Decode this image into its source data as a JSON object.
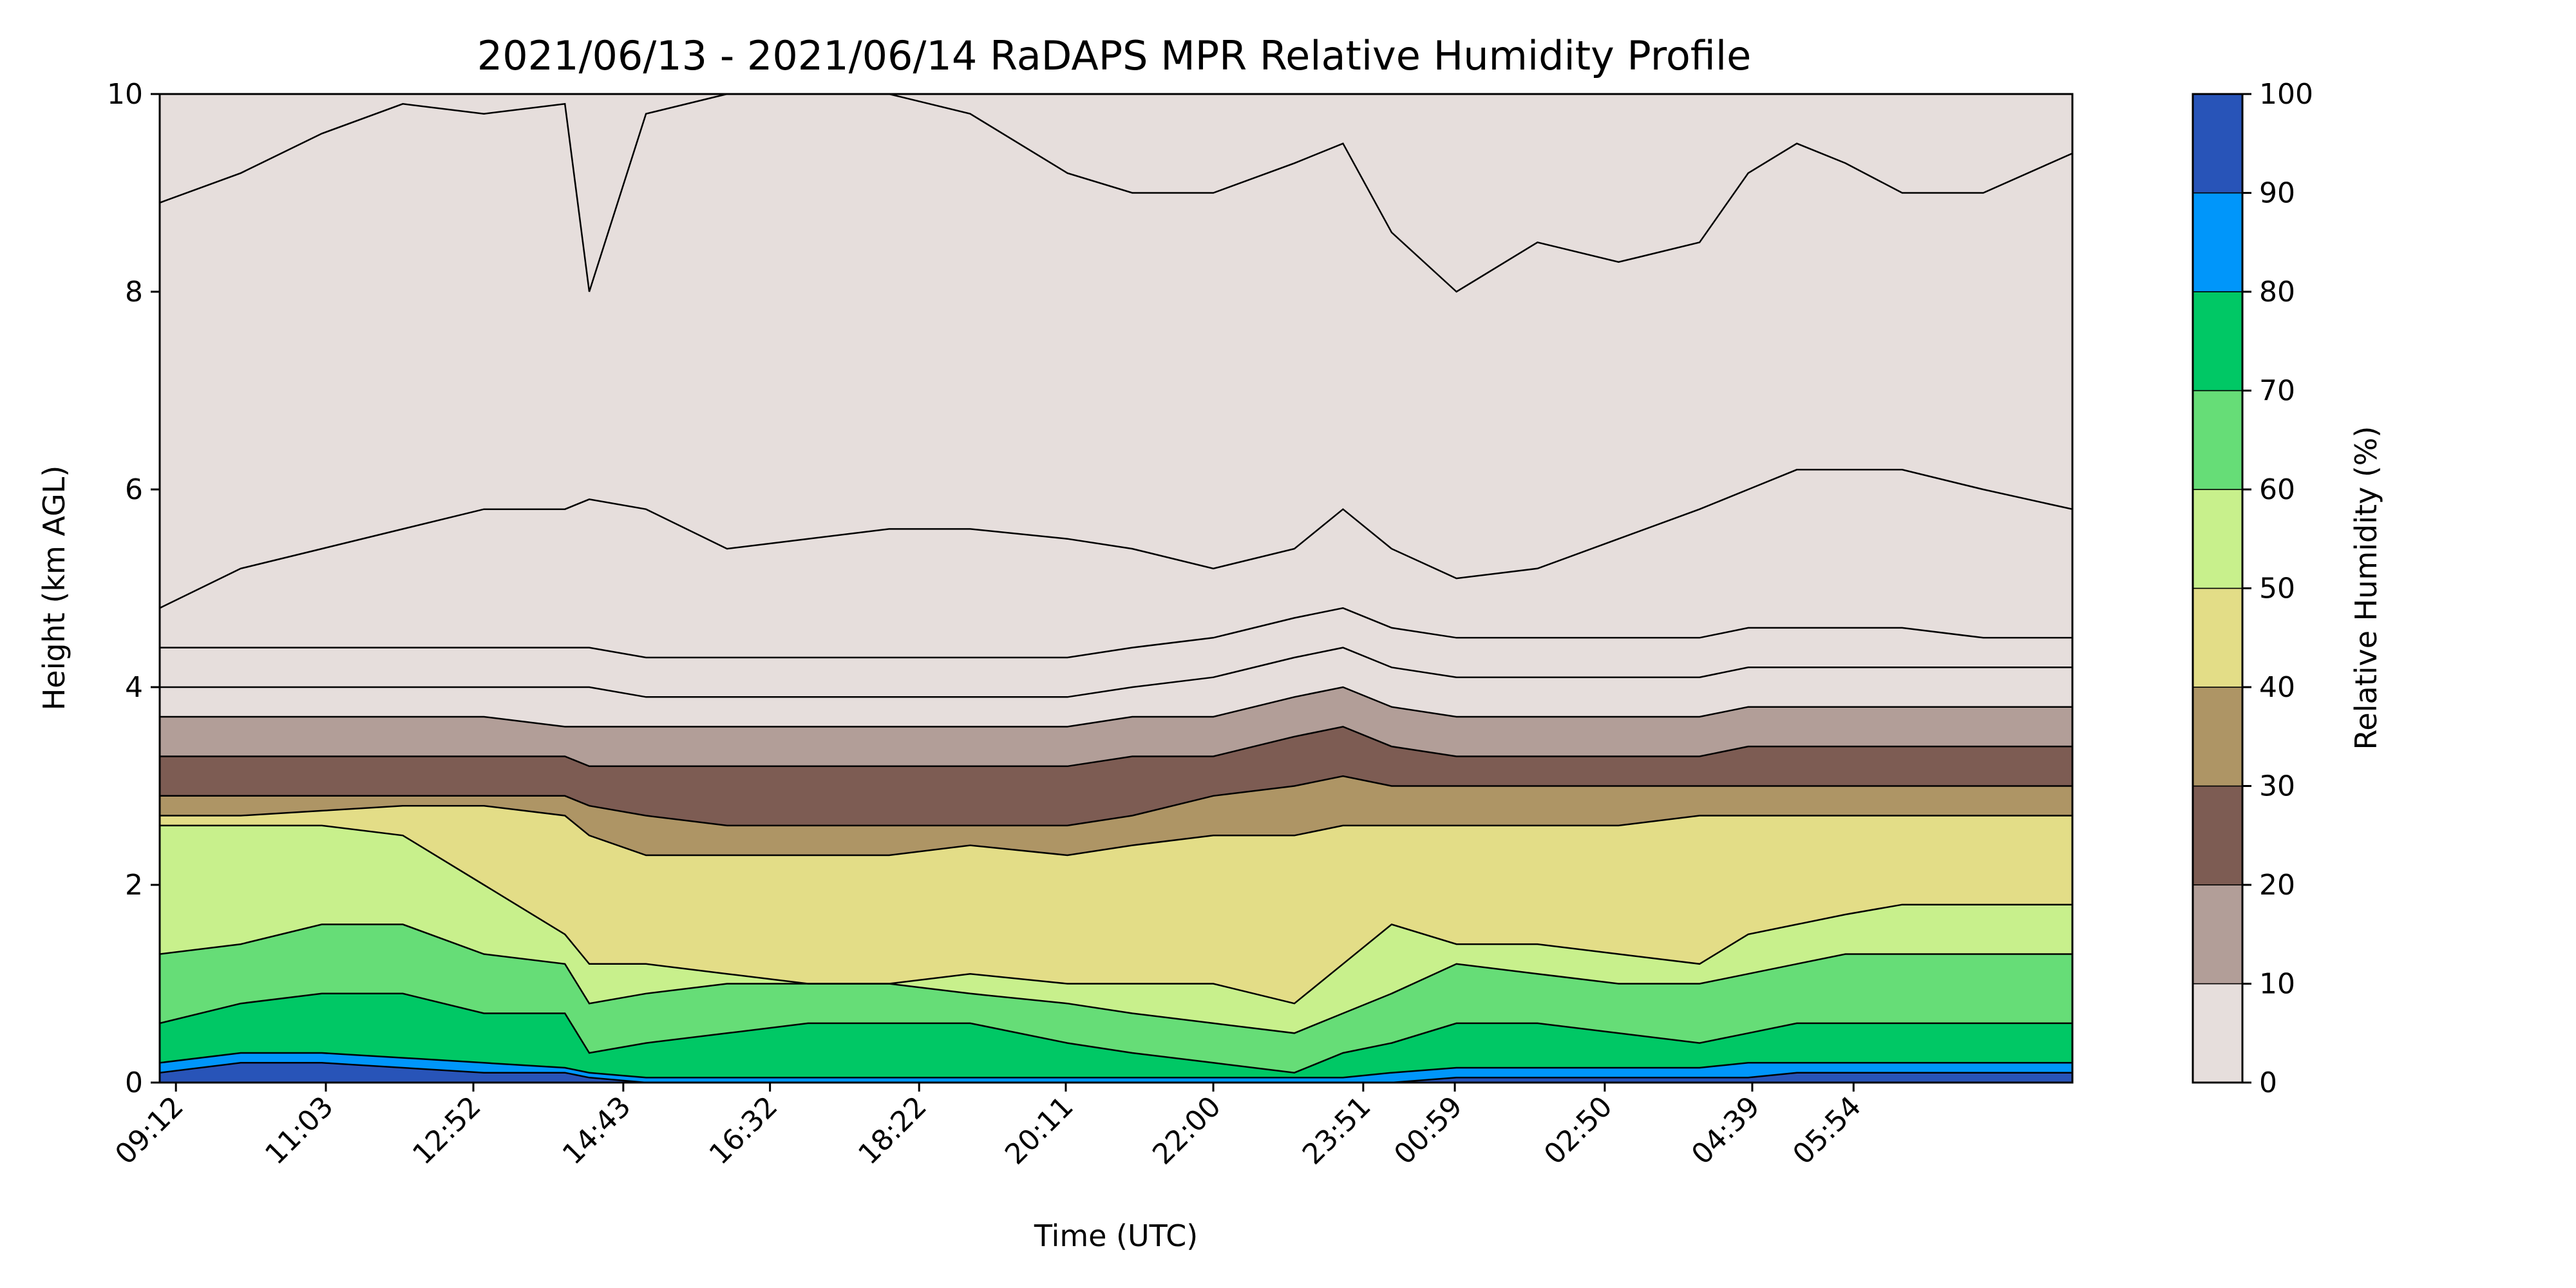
{
  "chart_data": {
    "type": "heatmap",
    "subtype": "filled-contour",
    "title": "2021/06/13 - 2021/06/14 RaDAPS MPR Relative Humidity Profile",
    "xlabel": "Time (UTC)",
    "ylabel": "Height (km AGL)",
    "ylim": [
      0,
      10
    ],
    "yticks": [
      "0",
      "2",
      "4",
      "6",
      "8",
      "10"
    ],
    "xlim_hours_since_0900": [
      0,
      23.6
    ],
    "xticks": [
      "09:12",
      "11:03",
      "12:52",
      "14:43",
      "16:32",
      "18:22",
      "20:11",
      "22:00",
      "23:51",
      "00:59",
      "02:50",
      "04:39",
      "05:54"
    ],
    "xtick_hours_since_0900": [
      0.2,
      2.05,
      3.87,
      5.72,
      7.53,
      9.37,
      11.18,
      13.0,
      14.85,
      15.98,
      17.83,
      19.65,
      20.9
    ],
    "colorbar": {
      "label": "Relative Humidity (%)",
      "levels": [
        0,
        10,
        20,
        30,
        40,
        50,
        60,
        70,
        80,
        90,
        100
      ],
      "ticks": [
        "0",
        "10",
        "20",
        "30",
        "40",
        "50",
        "60",
        "70",
        "80",
        "90",
        "100"
      ],
      "colors": [
        "#e6dedc",
        "#b29e98",
        "#7d5c53",
        "#ae9565",
        "#e3dd87",
        "#c8f08c",
        "#66dd77",
        "#00c865",
        "#0096fa",
        "#2854b8"
      ]
    },
    "profile_times_hours_since_0900": [
      0.0,
      1.0,
      2.0,
      3.0,
      4.0,
      5.0,
      5.3,
      6.0,
      7.0,
      8.0,
      9.0,
      10.0,
      11.2,
      12.0,
      13.0,
      14.0,
      14.6,
      15.2,
      16.0,
      17.0,
      18.0,
      19.0,
      19.6,
      20.2,
      20.8,
      21.5,
      22.5,
      23.6
    ],
    "band_boundaries_km": [
      [
        0.1,
        0.2,
        0.2,
        0.15,
        0.1,
        0.1,
        0.05,
        0.0,
        0.0,
        0.0,
        0.0,
        0.0,
        0.0,
        0.0,
        0.0,
        0.0,
        0.0,
        0.0,
        0.05,
        0.05,
        0.05,
        0.05,
        0.05,
        0.1,
        0.1,
        0.1,
        0.1,
        0.1
      ],
      [
        0.2,
        0.3,
        0.3,
        0.25,
        0.2,
        0.15,
        0.1,
        0.05,
        0.05,
        0.05,
        0.05,
        0.05,
        0.05,
        0.05,
        0.05,
        0.05,
        0.05,
        0.1,
        0.15,
        0.15,
        0.15,
        0.15,
        0.2,
        0.2,
        0.2,
        0.2,
        0.2,
        0.2
      ],
      [
        0.6,
        0.8,
        0.9,
        0.9,
        0.7,
        0.7,
        0.3,
        0.4,
        0.5,
        0.6,
        0.6,
        0.6,
        0.4,
        0.3,
        0.2,
        0.1,
        0.3,
        0.4,
        0.6,
        0.6,
        0.5,
        0.4,
        0.5,
        0.6,
        0.6,
        0.6,
        0.6,
        0.6
      ],
      [
        1.3,
        1.4,
        1.6,
        1.6,
        1.3,
        1.2,
        0.8,
        0.9,
        1.0,
        1.0,
        1.0,
        0.9,
        0.8,
        0.7,
        0.6,
        0.5,
        0.7,
        0.9,
        1.2,
        1.1,
        1.0,
        1.0,
        1.1,
        1.2,
        1.3,
        1.3,
        1.3,
        1.3
      ],
      [
        2.6,
        2.6,
        2.6,
        2.5,
        2.0,
        1.5,
        1.2,
        1.2,
        1.1,
        1.0,
        1.0,
        1.1,
        1.0,
        1.0,
        1.0,
        0.8,
        1.2,
        1.6,
        1.4,
        1.4,
        1.3,
        1.2,
        1.5,
        1.6,
        1.7,
        1.8,
        1.8,
        1.8
      ],
      [
        2.7,
        2.7,
        2.75,
        2.8,
        2.8,
        2.7,
        2.5,
        2.3,
        2.3,
        2.3,
        2.3,
        2.4,
        2.3,
        2.4,
        2.5,
        2.5,
        2.6,
        2.6,
        2.6,
        2.6,
        2.6,
        2.7,
        2.7,
        2.7,
        2.7,
        2.7,
        2.7,
        2.7
      ],
      [
        2.9,
        2.9,
        2.9,
        2.9,
        2.9,
        2.9,
        2.8,
        2.7,
        2.6,
        2.6,
        2.6,
        2.6,
        2.6,
        2.7,
        2.9,
        3.0,
        3.1,
        3.0,
        3.0,
        3.0,
        3.0,
        3.0,
        3.0,
        3.0,
        3.0,
        3.0,
        3.0,
        3.0
      ],
      [
        3.3,
        3.3,
        3.3,
        3.3,
        3.3,
        3.3,
        3.2,
        3.2,
        3.2,
        3.2,
        3.2,
        3.2,
        3.2,
        3.3,
        3.3,
        3.5,
        3.6,
        3.4,
        3.3,
        3.3,
        3.3,
        3.3,
        3.4,
        3.4,
        3.4,
        3.4,
        3.4,
        3.4
      ],
      [
        3.7,
        3.7,
        3.7,
        3.7,
        3.7,
        3.6,
        3.6,
        3.6,
        3.6,
        3.6,
        3.6,
        3.6,
        3.6,
        3.7,
        3.7,
        3.9,
        4.0,
        3.8,
        3.7,
        3.7,
        3.7,
        3.7,
        3.8,
        3.8,
        3.8,
        3.8,
        3.8,
        3.8
      ],
      [
        4.0,
        4.0,
        4.0,
        4.0,
        4.0,
        4.0,
        4.0,
        3.9,
        3.9,
        3.9,
        3.9,
        3.9,
        3.9,
        4.0,
        4.1,
        4.3,
        4.4,
        4.2,
        4.1,
        4.1,
        4.1,
        4.1,
        4.2,
        4.2,
        4.2,
        4.2,
        4.2,
        4.2
      ],
      [
        4.4,
        4.4,
        4.4,
        4.4,
        4.4,
        4.4,
        4.4,
        4.3,
        4.3,
        4.3,
        4.3,
        4.3,
        4.3,
        4.4,
        4.5,
        4.7,
        4.8,
        4.6,
        4.5,
        4.5,
        4.5,
        4.5,
        4.6,
        4.6,
        4.6,
        4.6,
        4.5,
        4.5
      ],
      [
        4.8,
        5.2,
        5.4,
        5.6,
        5.8,
        5.8,
        5.9,
        5.8,
        5.4,
        5.5,
        5.6,
        5.6,
        5.5,
        5.4,
        5.2,
        5.4,
        5.8,
        5.4,
        5.1,
        5.2,
        5.5,
        5.8,
        6.0,
        6.2,
        6.2,
        6.2,
        6.0,
        5.8
      ],
      [
        8.9,
        9.2,
        9.6,
        9.9,
        9.8,
        9.9,
        8.0,
        9.8,
        10.0,
        10.0,
        10.0,
        9.8,
        9.2,
        9.0,
        9.0,
        9.3,
        9.5,
        8.6,
        8.0,
        8.5,
        8.3,
        8.5,
        9.2,
        9.5,
        9.3,
        9.0,
        9.0,
        9.4
      ]
    ]
  }
}
